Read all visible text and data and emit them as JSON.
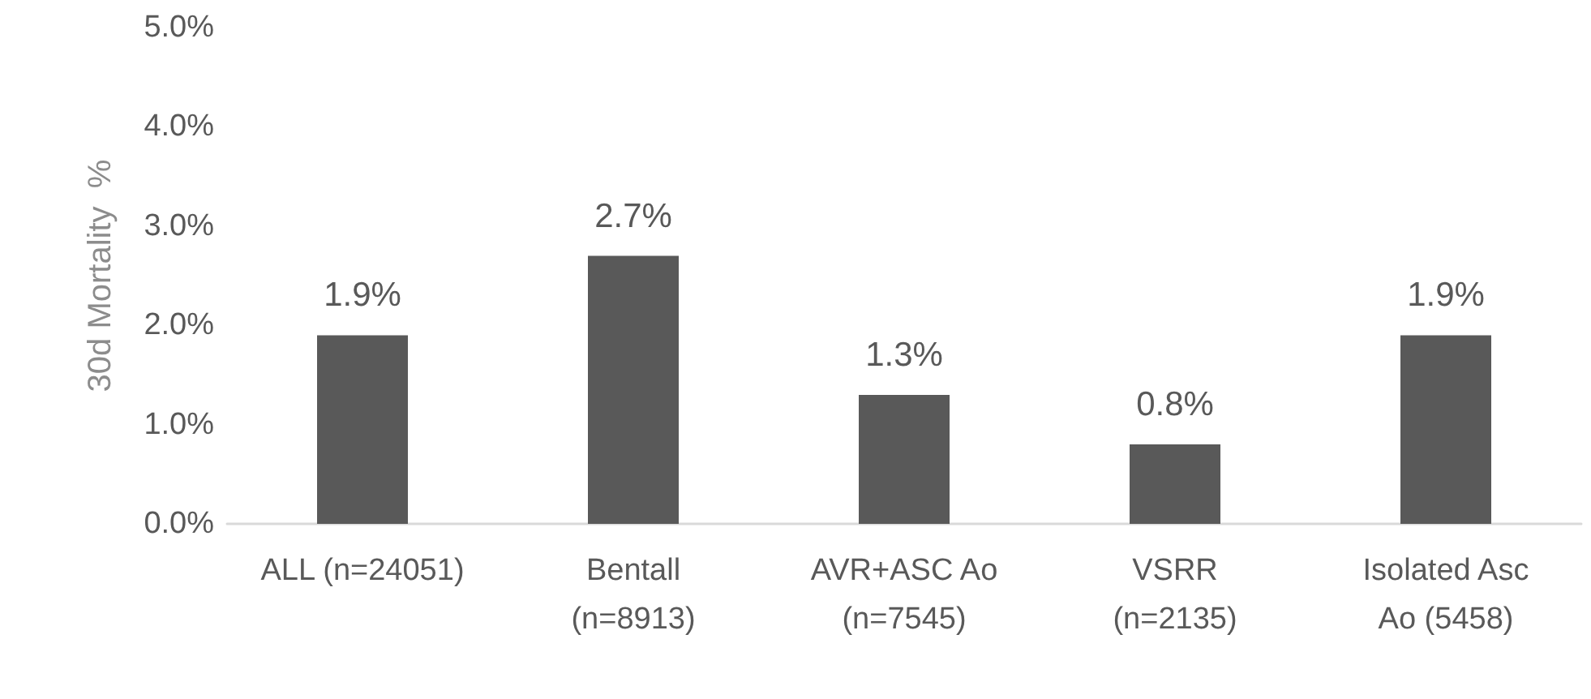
{
  "chart_data": {
    "type": "bar",
    "ylabel": "30d Mortality  %",
    "categories": [
      "ALL (n=24051)",
      "Bentall\n(n=8913)",
      "AVR+ASC Ao\n(n=7545)",
      "VSRR\n(n=2135)",
      "Isolated Asc\nAo (5458)"
    ],
    "values": [
      1.9,
      2.7,
      1.3,
      0.8,
      1.9
    ],
    "value_labels": [
      "1.9%",
      "2.7%",
      "1.3%",
      "0.8%",
      "1.9%"
    ],
    "color": "#595959",
    "ylim": [
      0,
      5
    ],
    "yticks": [
      {
        "value": 0,
        "label": "0.0%"
      },
      {
        "value": 1,
        "label": "1.0%"
      },
      {
        "value": 2,
        "label": "2.0%"
      },
      {
        "value": 3,
        "label": "3.0%"
      },
      {
        "value": 4,
        "label": "4.0%"
      },
      {
        "value": 5,
        "label": "5.0%"
      }
    ],
    "grid": false
  }
}
